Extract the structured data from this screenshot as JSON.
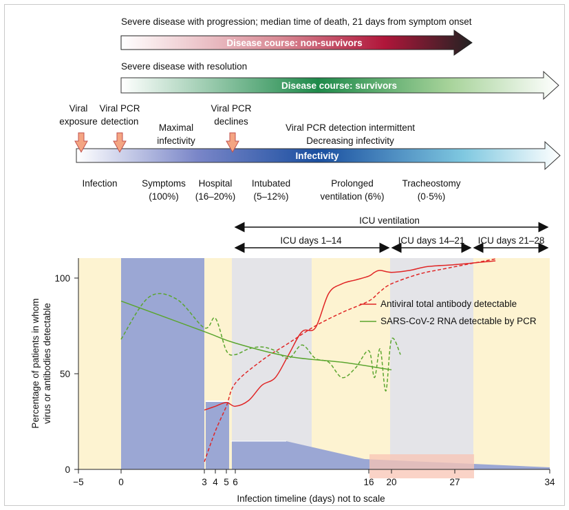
{
  "top": {
    "nonsurv_caption": "Severe disease with progression; median time of death, 21 days from symptom onset",
    "nonsurv_label": "Disease course: non-survivors",
    "surv_caption": "Severe disease with resolution",
    "surv_label": "Disease course: survivors",
    "infectivity_label": "Infectivity",
    "markers": {
      "viral_exposure": [
        "Viral",
        "exposure"
      ],
      "pcr_detection": [
        "Viral PCR",
        "detection"
      ],
      "maximal_infectivity": [
        "Maximal",
        "infectivity"
      ],
      "pcr_declines": [
        "Viral PCR",
        "declines"
      ],
      "intermittent": [
        "Viral PCR detection intermittent",
        "Decreasing infectivity"
      ]
    },
    "stages": {
      "infection": [
        "Infection"
      ],
      "symptoms": [
        "Symptoms",
        "(100%)"
      ],
      "hospital": [
        "Hospital",
        "(16–20%)"
      ],
      "intubated": [
        "Intubated",
        "(5–12%)"
      ],
      "prolonged": [
        "Prolonged",
        "ventilation (6%)"
      ],
      "tracheostomy": [
        "Tracheostomy",
        "(0·5%)"
      ]
    },
    "icu": {
      "ventilation": "ICU ventilation",
      "days_1_14": "ICU days 1–14",
      "days_14_21": "ICU days 14–21",
      "days_21_28": "ICU days 21–28"
    },
    "colors": {
      "nonsurv": "#b0163a",
      "surv": "#1e8a4a",
      "infectivity": "#1a4fa0",
      "marker": "#f4a582"
    }
  },
  "chart_data": {
    "type": "line",
    "xlabel": "Infection timeline (days) not to scale",
    "ylabel": [
      "Percentage of patients in whom",
      "virus or antibodies detectable"
    ],
    "x_ticks": [
      "−5",
      "0",
      "3",
      "4",
      "5",
      "6",
      "16",
      "20",
      "27",
      "34"
    ],
    "y_ticks": [
      0,
      50,
      100
    ],
    "ylim": [
      0,
      110
    ],
    "legend": [
      "Antiviral total antibody detectable",
      "SARS-CoV-2 RNA detectable by PCR"
    ],
    "legend_position": "upper-right",
    "colors": {
      "antibody": "#e02525",
      "pcr": "#5aa52e",
      "blue_band": "#9ba7d4",
      "yellow_band": "#fdf3d1",
      "grey_band": "#e4e4e8",
      "orange_box": "#f8c4b4"
    },
    "background_bands": [
      {
        "from": "−5",
        "to": "0",
        "color": "yellow"
      },
      {
        "from": "0",
        "to": "3",
        "color": "blue"
      },
      {
        "from": "3",
        "to": "6",
        "color": "yellow"
      },
      {
        "from": "6",
        "to": "~12",
        "color": "grey"
      },
      {
        "from": "~12",
        "to": "20",
        "color": "yellow"
      },
      {
        "from": "20",
        "to": "~28",
        "color": "grey"
      },
      {
        "from": "~28",
        "to": "34",
        "color": "yellow"
      }
    ],
    "blue_fill_levels": [
      {
        "from": "3",
        "to": "5",
        "level": 35
      },
      {
        "from": "6",
        "to": "~12",
        "level": 14
      },
      {
        "from": "~20",
        "to": "34",
        "level": "≈5 → 1"
      }
    ],
    "series": [
      {
        "name": "Antiviral total antibody detectable",
        "style": "solid",
        "points": [
          [
            3,
            31
          ],
          [
            4,
            33
          ],
          [
            5,
            35
          ],
          [
            6,
            33
          ],
          [
            7,
            36
          ],
          [
            8,
            44
          ],
          [
            9,
            48
          ],
          [
            10,
            60
          ],
          [
            11,
            72
          ],
          [
            12,
            74
          ],
          [
            13,
            92
          ],
          [
            14,
            97
          ],
          [
            15,
            99
          ],
          [
            16,
            101
          ],
          [
            17,
            103
          ],
          [
            18,
            104
          ],
          [
            20,
            103
          ],
          [
            22,
            104
          ],
          [
            24,
            106
          ],
          [
            27,
            107
          ],
          [
            30,
            109
          ]
        ]
      },
      {
        "name": "Antiviral total antibody detectable (dashed projection)",
        "style": "dashed",
        "points": [
          [
            3,
            4
          ],
          [
            4,
            20
          ],
          [
            5,
            33
          ],
          [
            6,
            45
          ],
          [
            8,
            57
          ],
          [
            10,
            66
          ],
          [
            12,
            75
          ],
          [
            14,
            82
          ],
          [
            16,
            88
          ],
          [
            18,
            93
          ],
          [
            20,
            97
          ],
          [
            23,
            102
          ],
          [
            26,
            105
          ],
          [
            30,
            110
          ]
        ]
      },
      {
        "name": "SARS-CoV-2 RNA detectable by PCR",
        "style": "solid",
        "points": [
          [
            0,
            88
          ],
          [
            3,
            72
          ],
          [
            6,
            66
          ],
          [
            10,
            59
          ],
          [
            14,
            56
          ],
          [
            18,
            53
          ],
          [
            20,
            52
          ]
        ]
      },
      {
        "name": "SARS-CoV-2 RNA detectable by PCR (dashed fluctuation)",
        "style": "dashed",
        "points": [
          [
            0,
            68
          ],
          [
            1,
            90
          ],
          [
            2,
            89
          ],
          [
            3,
            74
          ],
          [
            4,
            79
          ],
          [
            5,
            62
          ],
          [
            6,
            60
          ],
          [
            7,
            63
          ],
          [
            8,
            64
          ],
          [
            9,
            62
          ],
          [
            10,
            58
          ],
          [
            11,
            65
          ],
          [
            12,
            58
          ],
          [
            13,
            56
          ],
          [
            14,
            48
          ],
          [
            15,
            53
          ],
          [
            16,
            62
          ],
          [
            17,
            48
          ],
          [
            18,
            63
          ],
          [
            19,
            41
          ],
          [
            20,
            68
          ],
          [
            21,
            60
          ]
        ]
      }
    ]
  }
}
